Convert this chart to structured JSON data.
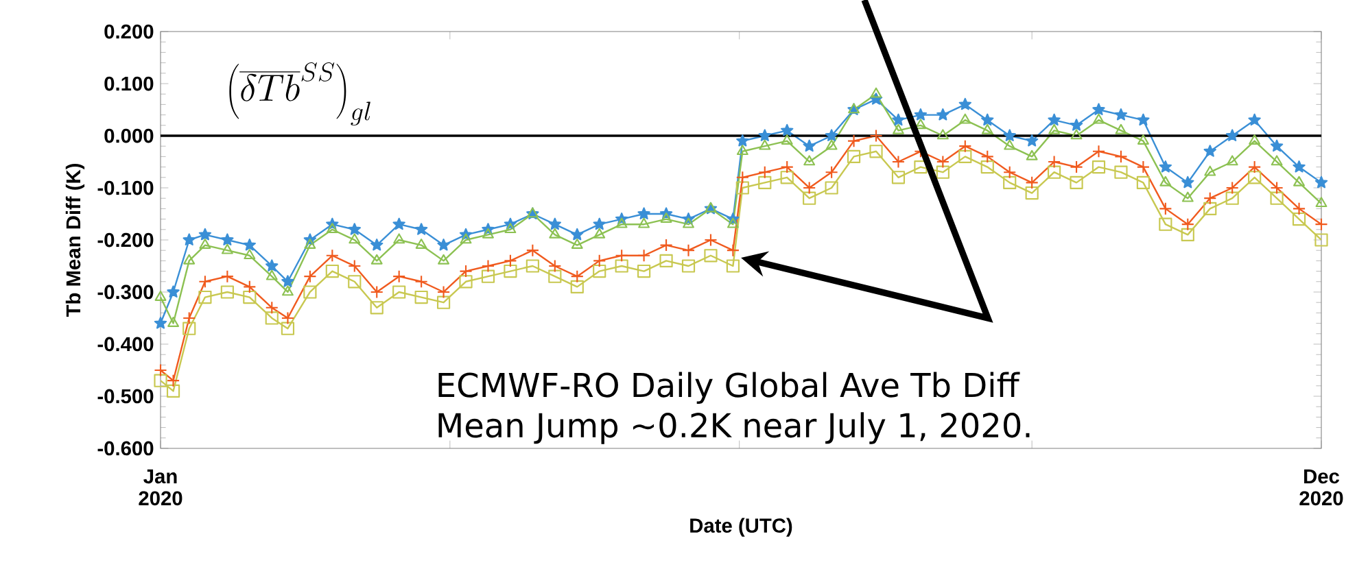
{
  "chart_data": {
    "type": "line",
    "xlabel": "Date (UTC)",
    "ylabel": "Tb Mean Diff (K)",
    "x": [
      "2020-01-01",
      "2020-01-05",
      "2020-01-10",
      "2020-01-15",
      "2020-01-22",
      "2020-01-29",
      "2020-02-05",
      "2020-02-10",
      "2020-02-17",
      "2020-02-24",
      "2020-03-02",
      "2020-03-09",
      "2020-03-16",
      "2020-03-23",
      "2020-03-30",
      "2020-04-06",
      "2020-04-13",
      "2020-04-20",
      "2020-04-27",
      "2020-05-04",
      "2020-05-11",
      "2020-05-18",
      "2020-05-25",
      "2020-06-01",
      "2020-06-08",
      "2020-06-15",
      "2020-06-22",
      "2020-06-29",
      "2020-07-02",
      "2020-07-09",
      "2020-07-16",
      "2020-07-23",
      "2020-07-30",
      "2020-08-06",
      "2020-08-13",
      "2020-08-20",
      "2020-08-27",
      "2020-09-03",
      "2020-09-10",
      "2020-09-17",
      "2020-09-24",
      "2020-10-01",
      "2020-10-08",
      "2020-10-15",
      "2020-10-22",
      "2020-10-29",
      "2020-11-05",
      "2020-11-12",
      "2020-11-19",
      "2020-11-26",
      "2020-12-03",
      "2020-12-10",
      "2020-12-17",
      "2020-12-24",
      "2020-12-31"
    ],
    "series": [
      {
        "color": "#3a8fd6",
        "marker": "star",
        "values": [
          -0.36,
          -0.3,
          -0.2,
          -0.19,
          -0.2,
          -0.21,
          -0.25,
          -0.28,
          -0.2,
          -0.17,
          -0.18,
          -0.21,
          -0.17,
          -0.18,
          -0.21,
          -0.19,
          -0.18,
          -0.17,
          -0.15,
          -0.17,
          -0.19,
          -0.17,
          -0.16,
          -0.15,
          -0.15,
          -0.16,
          -0.14,
          -0.16,
          -0.01,
          0.0,
          0.01,
          -0.02,
          0.0,
          0.05,
          0.07,
          0.03,
          0.04,
          0.04,
          0.06,
          0.03,
          0.0,
          -0.01,
          0.03,
          0.02,
          0.05,
          0.04,
          0.03,
          -0.06,
          -0.09,
          -0.03,
          0.0,
          0.03,
          -0.02,
          -0.06,
          -0.09
        ]
      },
      {
        "color": "#8cc152",
        "marker": "triangle",
        "values": [
          -0.31,
          -0.36,
          -0.24,
          -0.21,
          -0.22,
          -0.23,
          -0.27,
          -0.3,
          -0.21,
          -0.18,
          -0.2,
          -0.24,
          -0.2,
          -0.21,
          -0.24,
          -0.2,
          -0.19,
          -0.18,
          -0.15,
          -0.19,
          -0.21,
          -0.19,
          -0.17,
          -0.17,
          -0.16,
          -0.17,
          -0.14,
          -0.17,
          -0.03,
          -0.02,
          -0.01,
          -0.05,
          -0.02,
          0.05,
          0.08,
          0.01,
          0.02,
          0.0,
          0.03,
          0.01,
          -0.02,
          -0.04,
          0.01,
          0.0,
          0.03,
          0.01,
          -0.01,
          -0.09,
          -0.12,
          -0.07,
          -0.05,
          -0.01,
          -0.05,
          -0.09,
          -0.13
        ]
      },
      {
        "color": "#c8c850",
        "marker": "square",
        "values": [
          -0.47,
          -0.49,
          -0.37,
          -0.31,
          -0.3,
          -0.31,
          -0.35,
          -0.37,
          -0.3,
          -0.26,
          -0.28,
          -0.33,
          -0.3,
          -0.31,
          -0.32,
          -0.28,
          -0.27,
          -0.26,
          -0.25,
          -0.27,
          -0.29,
          -0.26,
          -0.25,
          -0.26,
          -0.24,
          -0.25,
          -0.23,
          -0.25,
          -0.1,
          -0.09,
          -0.08,
          -0.12,
          -0.1,
          -0.04,
          -0.03,
          -0.08,
          -0.06,
          -0.07,
          -0.04,
          -0.06,
          -0.09,
          -0.11,
          -0.07,
          -0.09,
          -0.06,
          -0.07,
          -0.09,
          -0.17,
          -0.19,
          -0.14,
          -0.12,
          -0.08,
          -0.12,
          -0.16,
          -0.2
        ]
      },
      {
        "color": "#f05a1e",
        "marker": "cross",
        "values": [
          -0.45,
          -0.47,
          -0.35,
          -0.28,
          -0.27,
          -0.29,
          -0.33,
          -0.35,
          -0.27,
          -0.23,
          -0.25,
          -0.3,
          -0.27,
          -0.28,
          -0.3,
          -0.26,
          -0.25,
          -0.24,
          -0.22,
          -0.25,
          -0.27,
          -0.24,
          -0.23,
          -0.23,
          -0.21,
          -0.22,
          -0.2,
          -0.22,
          -0.08,
          -0.07,
          -0.06,
          -0.1,
          -0.07,
          -0.01,
          0.0,
          -0.05,
          -0.03,
          -0.05,
          -0.02,
          -0.04,
          -0.07,
          -0.09,
          -0.05,
          -0.06,
          -0.03,
          -0.04,
          -0.06,
          -0.14,
          -0.17,
          -0.12,
          -0.1,
          -0.06,
          -0.1,
          -0.14,
          -0.17
        ]
      }
    ],
    "xlim": [
      "2020-01-01",
      "2020-12-31"
    ],
    "xticks": [
      {
        "value": "2020-01-01",
        "label": "Jan 2020"
      },
      {
        "value": "2020-04-01",
        "label": null
      },
      {
        "value": "2020-07-01",
        "label": null
      },
      {
        "value": "2020-10-01",
        "label": null
      },
      {
        "value": "2020-12-31",
        "label": "Dec 2020"
      }
    ],
    "ylim": [
      -0.6,
      0.2
    ],
    "yticks": [
      {
        "value": -0.6,
        "label": "-0.600"
      },
      {
        "value": -0.5,
        "label": "-0.500"
      },
      {
        "value": -0.4,
        "label": "-0.400"
      },
      {
        "value": -0.3,
        "label": "-0.300"
      },
      {
        "value": -0.2,
        "label": "-0.200"
      },
      {
        "value": -0.1,
        "label": "-0.100"
      },
      {
        "value": 0.0,
        "label": "0.000"
      },
      {
        "value": 0.1,
        "label": "0.100"
      },
      {
        "value": 0.2,
        "label": "0.200"
      }
    ],
    "ref_lines": [
      {
        "axis": "y",
        "value": 0,
        "color": "#000000"
      }
    ],
    "annotations": [
      "\\left(\\overline{\\delta Tb}^{SS}\\right)_{gl}",
      "ECMWF-RO Daily Global Ave Tb Diff",
      "Mean Jump ~0.2K near July 1, 2020."
    ],
    "grid": false
  }
}
